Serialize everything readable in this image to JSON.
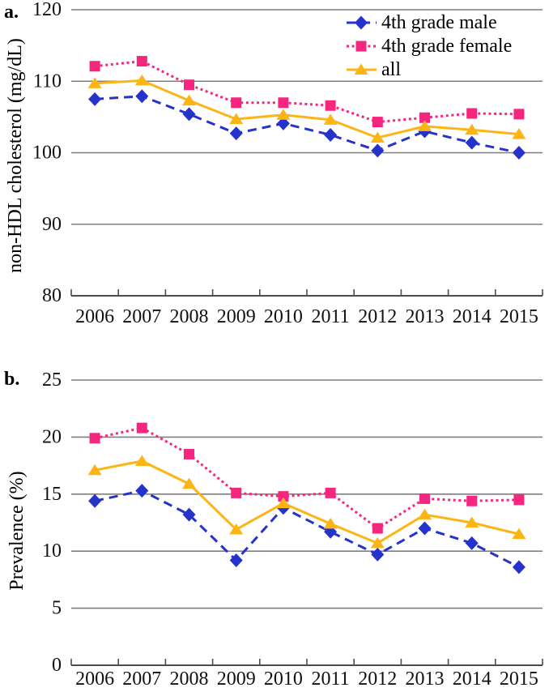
{
  "page": {
    "background": "#ffffff"
  },
  "colors": {
    "male_blue": "#2533CB",
    "female_pink": "#F5267E",
    "all_orange": "#FCB515",
    "grid": "#7f7f7f",
    "axis": "#4d4d4d",
    "text": "#111111"
  },
  "series_meta": [
    {
      "key": "male",
      "label": "4th grade male",
      "color": "#2533CB",
      "marker": "diamond",
      "line_style": "dashed"
    },
    {
      "key": "female",
      "label": "4th grade female",
      "color": "#F5267E",
      "marker": "square",
      "line_style": "dotted"
    },
    {
      "key": "all",
      "label": "all",
      "color": "#FCB515",
      "marker": "triangle",
      "line_style": "solid"
    }
  ],
  "chart_data": [
    {
      "id": "a",
      "type": "line",
      "panel_label": "a.",
      "ylabel": "non-HDL cholesterol (mg/dL)",
      "xlabel": "",
      "ylim": [
        80,
        120
      ],
      "y_ticks": [
        120,
        110,
        100,
        90,
        80
      ],
      "gridlines": [
        120,
        110,
        100,
        90
      ],
      "grid": true,
      "legend_position": "top-right",
      "categories": [
        "2006",
        "2007",
        "2008",
        "2009",
        "2010",
        "2011",
        "2012",
        "2013",
        "2014",
        "2015"
      ],
      "series": [
        {
          "name": "4th grade male",
          "values": [
            107.5,
            107.9,
            105.4,
            102.7,
            104.1,
            102.5,
            100.3,
            103.0,
            101.4,
            100.0
          ]
        },
        {
          "name": "4th grade female",
          "values": [
            112.1,
            112.8,
            109.5,
            107.0,
            107.0,
            106.6,
            104.3,
            104.9,
            105.5,
            105.4
          ]
        },
        {
          "name": "all",
          "values": [
            109.7,
            110.1,
            107.3,
            104.7,
            105.3,
            104.6,
            102.1,
            103.7,
            103.2,
            102.6
          ]
        }
      ]
    },
    {
      "id": "b",
      "type": "line",
      "panel_label": "b.",
      "ylabel": "Prevalence (%)",
      "xlabel": "",
      "ylim": [
        0,
        25
      ],
      "y_ticks": [
        25,
        20,
        15,
        10,
        5,
        0
      ],
      "gridlines": [
        25,
        20,
        15,
        10,
        5
      ],
      "grid": true,
      "legend_position": "none",
      "categories": [
        "2006",
        "2007",
        "2008",
        "2009",
        "2010",
        "2011",
        "2012",
        "2013",
        "2014",
        "2015"
      ],
      "series": [
        {
          "name": "4th grade male",
          "values": [
            14.4,
            15.3,
            13.2,
            9.2,
            13.8,
            11.7,
            9.7,
            12.0,
            10.7,
            8.6
          ]
        },
        {
          "name": "4th grade female",
          "values": [
            19.9,
            20.8,
            18.5,
            15.1,
            14.8,
            15.1,
            12.0,
            14.6,
            14.4,
            14.5
          ]
        },
        {
          "name": "all",
          "values": [
            17.1,
            17.9,
            15.9,
            11.9,
            14.2,
            12.4,
            10.7,
            13.2,
            12.5,
            11.5
          ]
        }
      ]
    }
  ]
}
